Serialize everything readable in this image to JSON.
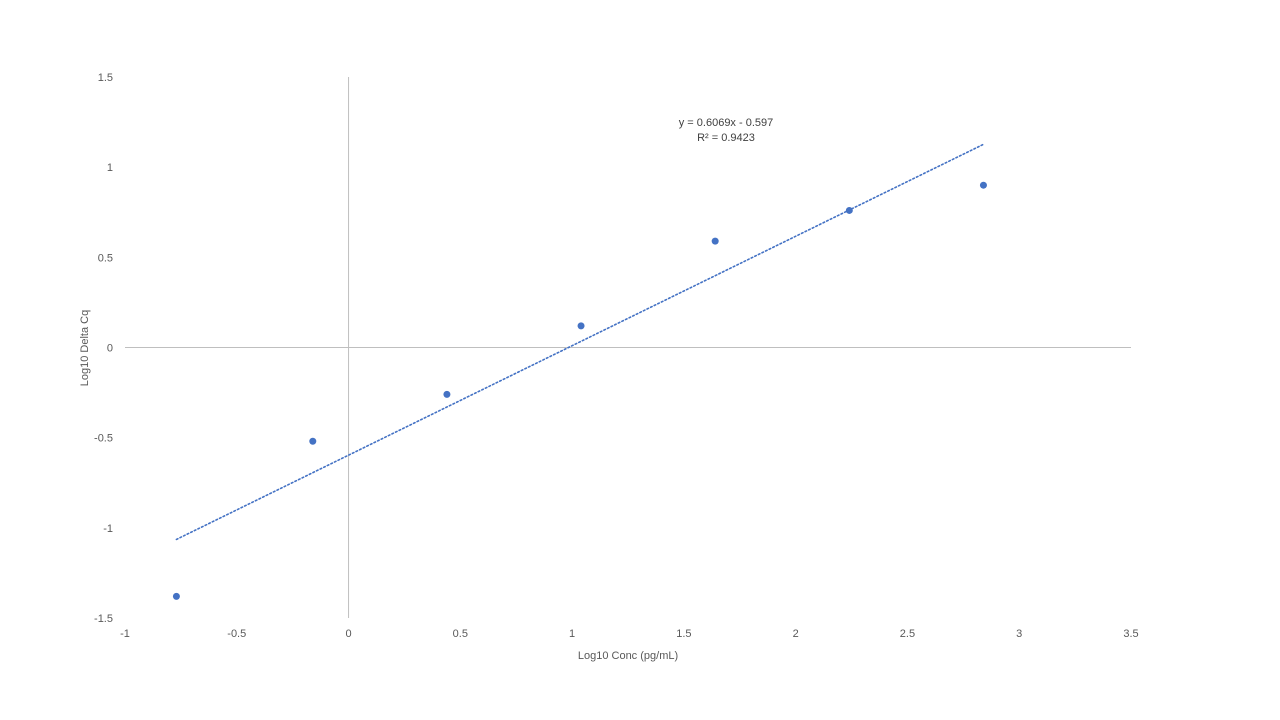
{
  "chart_data": {
    "type": "scatter",
    "xlabel": "Log10 Conc (pg/mL)",
    "ylabel": "Log10 Delta Cq",
    "xlim": [
      -1,
      3.5
    ],
    "ylim": [
      -1.5,
      1.5
    ],
    "x_ticks": [
      -1,
      -0.5,
      0,
      0.5,
      1,
      1.5,
      2,
      2.5,
      3,
      3.5
    ],
    "y_ticks": [
      -1.5,
      -1,
      -0.5,
      0,
      0.5,
      1,
      1.5
    ],
    "x_tick_labels": [
      "-1",
      "-0.5",
      "0",
      "0.5",
      "1",
      "1.5",
      "2",
      "2.5",
      "3",
      "3.5"
    ],
    "y_tick_labels": [
      "-1.5",
      "-1",
      "-0.5",
      "0",
      "0.5",
      "1",
      "1.5"
    ],
    "grid": false,
    "series": [
      {
        "x": [
          -0.77,
          -0.16,
          0.44,
          1.04,
          1.64,
          2.24,
          2.84
        ],
        "y": [
          -1.38,
          -0.52,
          -0.26,
          0.12,
          0.59,
          0.76,
          0.9
        ],
        "color": "#4472C4"
      }
    ],
    "trendline": {
      "type": "linear",
      "slope": 0.6069,
      "intercept": -0.597,
      "x_range": [
        -0.77,
        2.84
      ],
      "style": "dotted",
      "color": "#4472C4",
      "equation_label": "y = 0.6069x - 0.597",
      "r2_label": "R² = 0.9423"
    },
    "colors": {
      "axis": "#BFBFBF",
      "text": "#595959"
    }
  }
}
